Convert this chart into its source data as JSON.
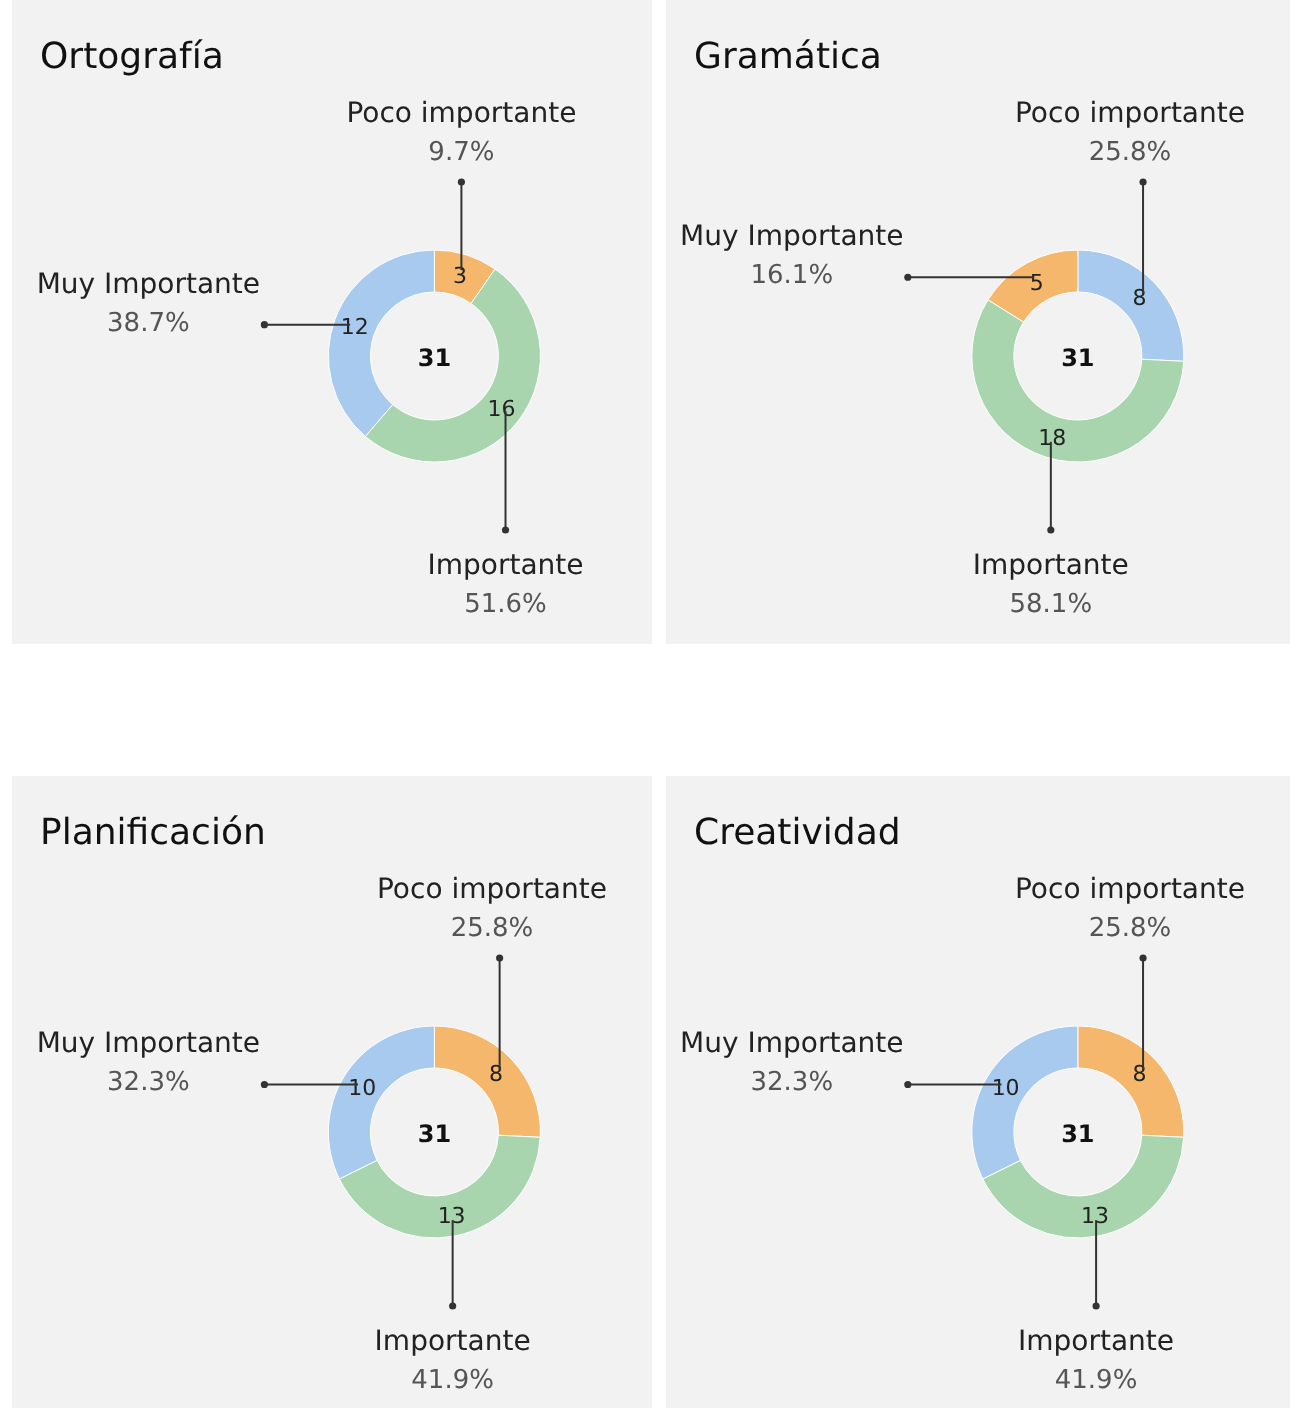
{
  "chart_data": [
    {
      "type": "donut",
      "title": "Ortografía",
      "categories": [
        "Poco importante",
        "Importante",
        "Muy Importante"
      ],
      "values": [
        9.7,
        51.6,
        38.7
      ],
      "colors": [
        "#f5b76c",
        "#a8d5ae",
        "#a7caee"
      ],
      "value_labels": [
        "9.7%",
        "51.6%",
        "38.7%"
      ],
      "totals": [
        "31"
      ],
      "annotations": [
        {
          "text": "3",
          "x": "Poco importante"
        },
        {
          "text": "16",
          "x": "Importante"
        },
        {
          "text": "12",
          "x": "Muy Importante"
        }
      ]
    },
    {
      "type": "donut",
      "title": "Gramática",
      "categories": [
        "Poco importante",
        "Importante",
        "Muy Importante"
      ],
      "values": [
        25.8,
        58.1,
        16.1
      ],
      "colors": [
        "#a7caee",
        "#a8d5ae",
        "#f5b76c"
      ],
      "value_labels": [
        "25.8%",
        "58.1%",
        "16.1%"
      ],
      "totals": [
        "31"
      ],
      "annotations": [
        {
          "text": "8",
          "x": "Poco importante"
        },
        {
          "text": "18",
          "x": "Importante"
        },
        {
          "text": "5",
          "x": "Muy Importante"
        }
      ]
    },
    {
      "type": "donut",
      "title": "Planificación",
      "categories": [
        "Poco importante",
        "Importante",
        "Muy Importante"
      ],
      "values": [
        25.8,
        41.9,
        32.3
      ],
      "colors": [
        "#f5b76c",
        "#a8d5ae",
        "#a7caee"
      ],
      "value_labels": [
        "25.8%",
        "41.9%",
        "32.3%"
      ],
      "totals": [
        "31"
      ],
      "annotations": [
        {
          "text": "8",
          "x": "Poco importante"
        },
        {
          "text": "13",
          "x": "Importante"
        },
        {
          "text": "10",
          "x": "Muy Importante"
        }
      ]
    },
    {
      "type": "donut",
      "title": "Creatividad",
      "categories": [
        "Poco importante",
        "Importante",
        "Muy Importante"
      ],
      "values": [
        25.8,
        41.9,
        32.3
      ],
      "colors": [
        "#f5b76c",
        "#a8d5ae",
        "#a7caee"
      ],
      "value_labels": [
        "25.8%",
        "41.9%",
        "32.3%"
      ],
      "totals": [
        "31"
      ],
      "annotations": [
        {
          "text": "8",
          "x": "Poco importante"
        },
        {
          "text": "13",
          "x": "Importante"
        },
        {
          "text": "10",
          "x": "Muy Importante"
        }
      ]
    }
  ]
}
